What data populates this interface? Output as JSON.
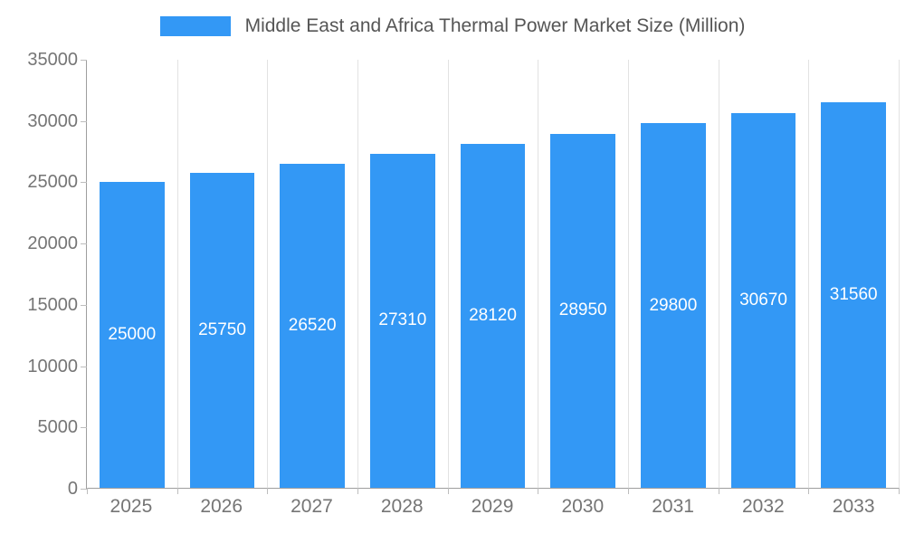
{
  "legend": {
    "label": "Middle East and Africa Thermal Power Market Size (Million)"
  },
  "chart_data": {
    "type": "bar",
    "title": "Middle East and Africa Thermal Power Market Size (Million)",
    "categories": [
      "2025",
      "2026",
      "2027",
      "2028",
      "2029",
      "2030",
      "2031",
      "2032",
      "2033"
    ],
    "values": [
      25000,
      25750,
      26520,
      27310,
      28120,
      28950,
      29800,
      30670,
      31560
    ],
    "xlabel": "",
    "ylabel": "",
    "ylim": [
      0,
      35000
    ],
    "yticks": [
      0,
      5000,
      10000,
      15000,
      20000,
      25000,
      30000,
      35000
    ],
    "bar_color": "#3398f5",
    "value_label_color": "#ffffff",
    "grid": "vertical-only",
    "legend_position": "top-center"
  }
}
